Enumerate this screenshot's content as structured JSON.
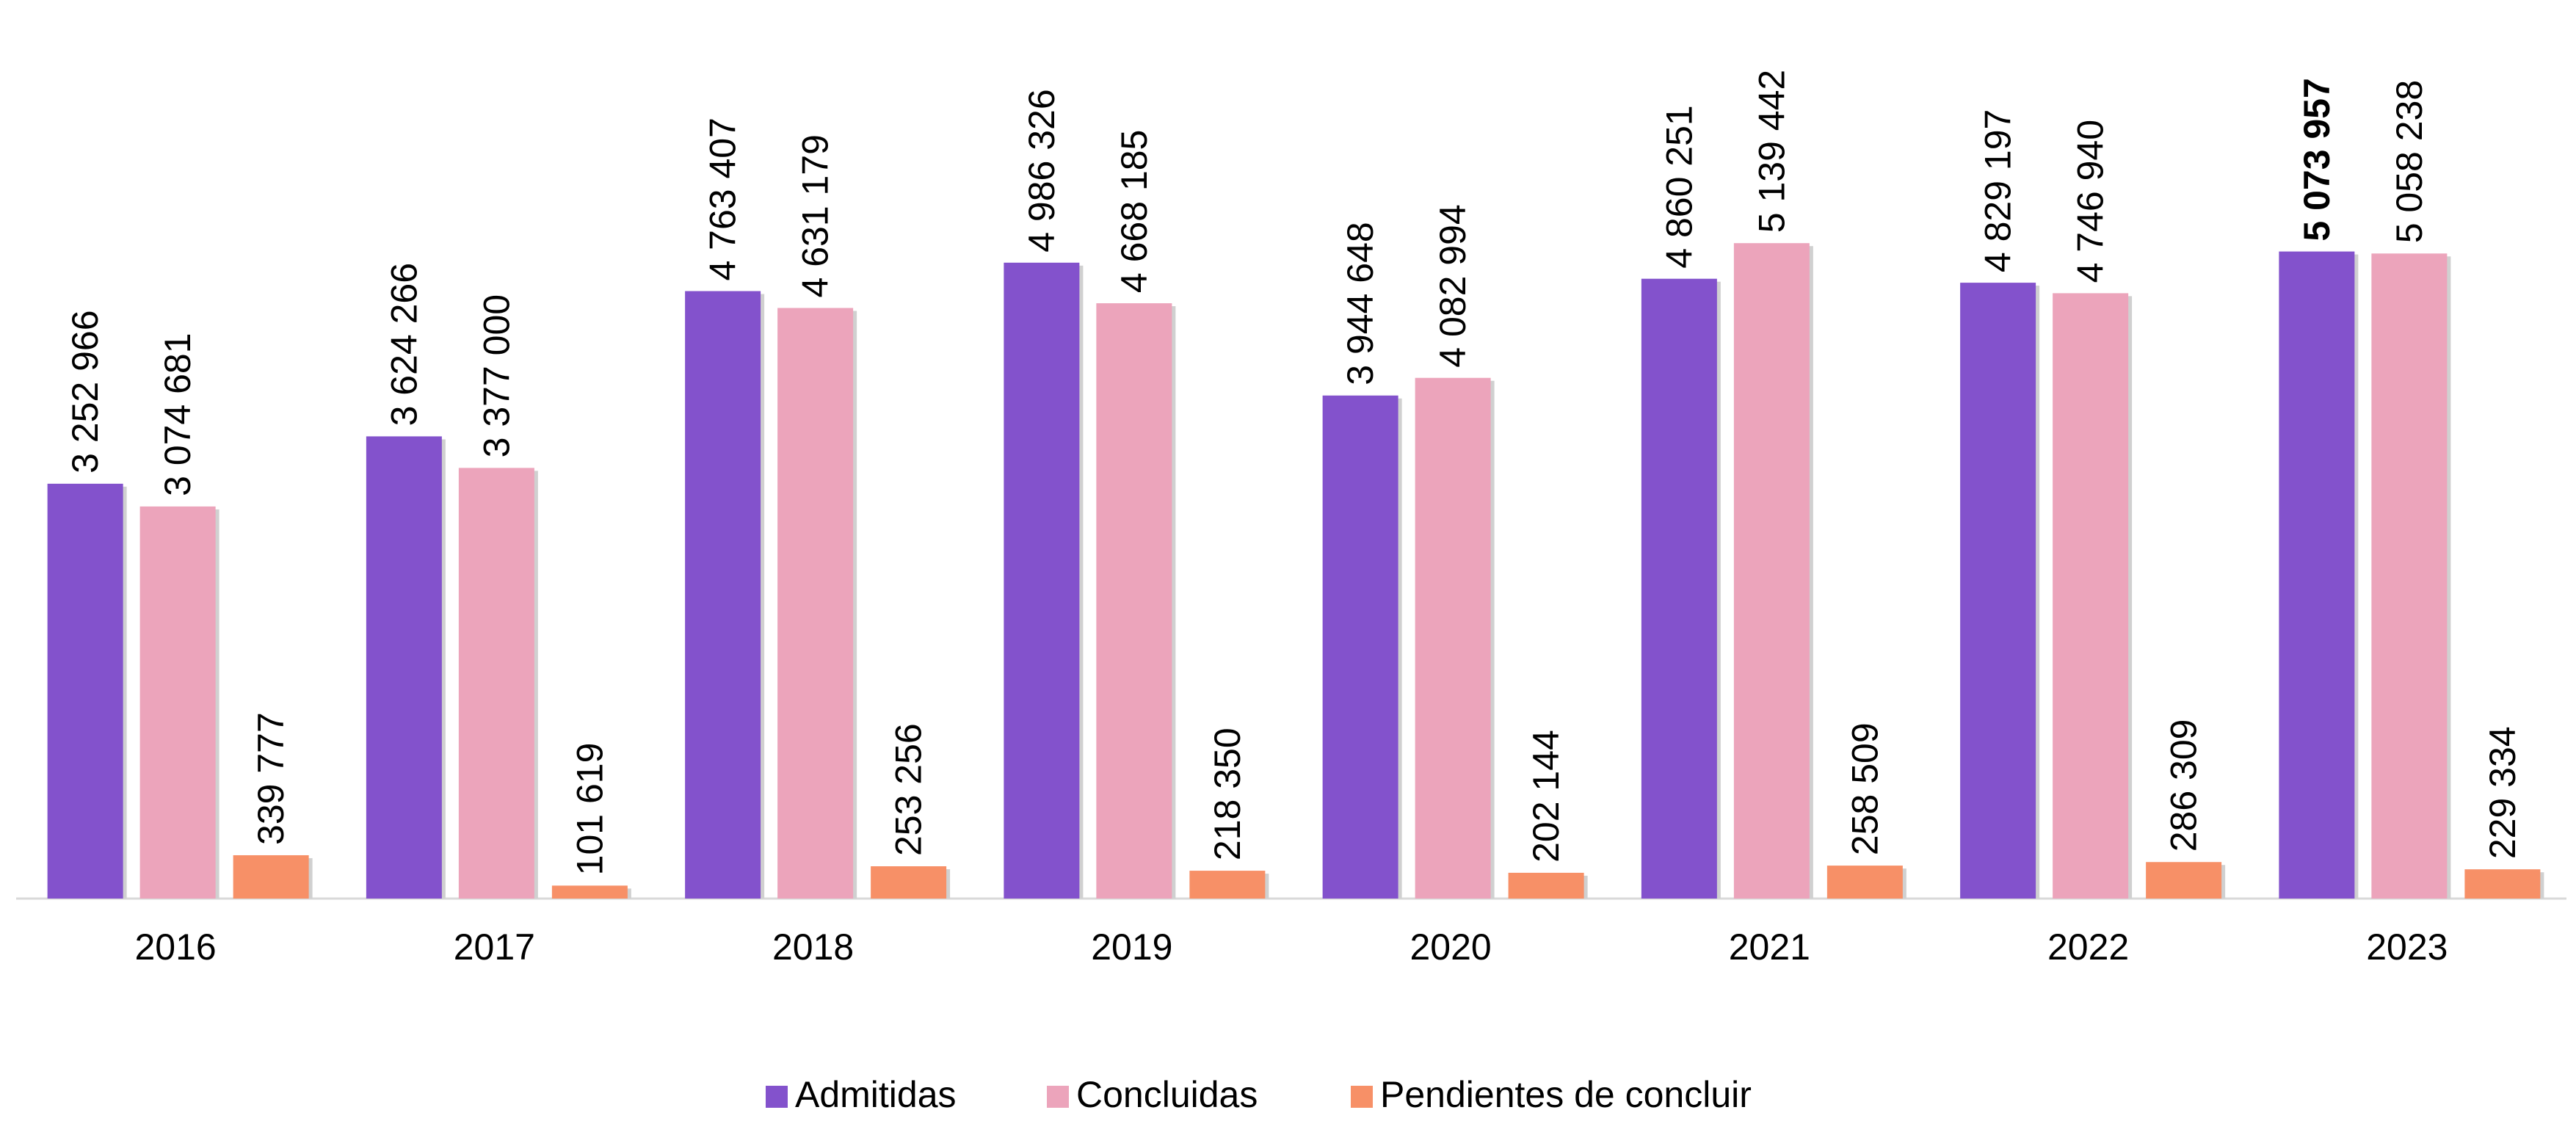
{
  "chart_data": {
    "type": "bar",
    "categories": [
      "2016",
      "2017",
      "2018",
      "2019",
      "2020",
      "2021",
      "2022",
      "2023"
    ],
    "series": [
      {
        "name": "Admitidas",
        "color": "#8352cc",
        "values": [
          3252966,
          3624266,
          4763407,
          4986326,
          3944648,
          4860251,
          4829197,
          5073957
        ],
        "value_labels": [
          "3 252 966",
          "3 624 266",
          "4 763 407",
          "4 986 326",
          "3 944 648",
          "4 860 251",
          "4 829 197",
          "5 073 957"
        ]
      },
      {
        "name": "Concluidas",
        "color": "#eca4bb",
        "values": [
          3074681,
          3377000,
          4631179,
          4668185,
          4082994,
          5139442,
          4746940,
          5058238
        ],
        "value_labels": [
          "3 074 681",
          "3 377 000",
          "4 631 179",
          "4 668 185",
          "4 082 994",
          "5 139 442",
          "4 746 940",
          "5 058 238"
        ]
      },
      {
        "name": "Pendientes de concluir",
        "color": "#f79067",
        "values": [
          339777,
          101619,
          253256,
          218350,
          202144,
          258509,
          286309,
          229334
        ],
        "value_labels": [
          "339 777",
          "101 619",
          "253 256",
          "218 350",
          "202 144",
          "258 509",
          "286 309",
          "229 334"
        ]
      }
    ],
    "ylim": [
      0,
      7000000
    ],
    "legend": "bottom"
  }
}
